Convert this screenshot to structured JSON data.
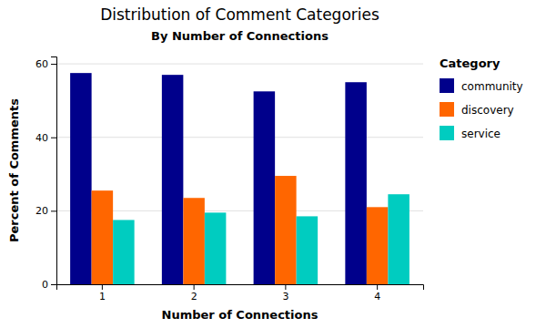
{
  "chart_data": {
    "type": "bar",
    "title": "Distribution of Comment Categories",
    "subtitle": "By Number of Connections",
    "xlabel": "Number of Connections",
    "ylabel": "Percent of Comments",
    "legend_title": "Category",
    "categories": [
      "1",
      "2",
      "3",
      "4"
    ],
    "series": [
      {
        "name": "community",
        "color": "#00008B",
        "values": [
          57.5,
          57.0,
          52.5,
          55.0
        ]
      },
      {
        "name": "discovery",
        "color": "#FF6600",
        "values": [
          25.5,
          23.5,
          29.5,
          21.0
        ]
      },
      {
        "name": "service",
        "color": "#00CCC0",
        "values": [
          17.5,
          19.5,
          18.5,
          24.5
        ]
      }
    ],
    "ylim": [
      0,
      62
    ],
    "yticks": [
      0,
      20,
      40,
      60
    ],
    "grid": true,
    "legend": "right"
  }
}
